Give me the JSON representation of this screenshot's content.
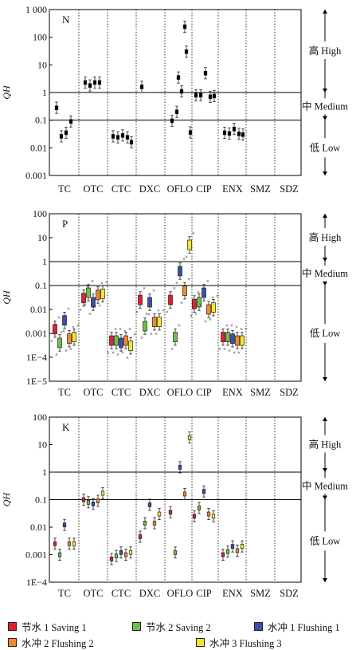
{
  "chart_data": [
    {
      "type": "box",
      "panel_label": "N",
      "ylabel": "Q_H",
      "yscale": "log",
      "ylim": [
        0.001,
        1000
      ],
      "ytick_labels": [
        "0.001",
        "0.01",
        "0.1",
        "1",
        "10",
        "100",
        "1 000"
      ],
      "categories": [
        "TC",
        "OTC",
        "CTC",
        "DXC",
        "OFLO",
        "CIP",
        "ENX",
        "SMZ",
        "SDZ"
      ],
      "thresholds": [
        0.1,
        1
      ],
      "levels": [
        "高 High",
        "中 Medium",
        "低 Low"
      ],
      "series": [
        {
          "color": "#000000",
          "values": [
            0.28,
            2.3,
            0.026,
            1.6,
            0.095,
            0.8,
            0.035,
            null,
            null
          ]
        },
        {
          "color": "#000000",
          "values": [
            0.026,
            1.8,
            0.024,
            null,
            0.2,
            0.8,
            0.033,
            null,
            null
          ]
        },
        {
          "color": "#000000",
          "values": [
            0.035,
            2.3,
            0.028,
            null,
            1.1,
            5.0,
            0.048,
            null,
            null
          ]
        },
        {
          "color": "#000000",
          "values": [
            0.09,
            2.3,
            0.024,
            null,
            30,
            0.7,
            0.032,
            null,
            null
          ]
        },
        {
          "color": "#000000",
          "values": [
            null,
            null,
            0.016,
            null,
            0.036,
            0.75,
            0.03,
            null,
            null
          ]
        },
        {
          "color": "#000000",
          "values": [
            null,
            null,
            null,
            null,
            3.5,
            null,
            null,
            null,
            null
          ]
        },
        {
          "color": "#000000",
          "values": [
            null,
            null,
            null,
            null,
            240,
            null,
            null,
            null,
            null
          ]
        }
      ]
    },
    {
      "type": "box",
      "panel_label": "P",
      "ylabel": "Q_H",
      "yscale": "log",
      "ylim": [
        1e-05,
        100
      ],
      "ytick_labels": [
        "1E−5",
        "1E−4",
        "0.001",
        "0.01",
        "0.1",
        "1",
        "10",
        "100"
      ],
      "categories": [
        "TC",
        "OTC",
        "CTC",
        "DXC",
        "OFLO",
        "CIP",
        "ENX",
        "SMZ",
        "SDZ"
      ],
      "thresholds": [
        0.1,
        1
      ],
      "levels": [
        "高 High",
        "中 Medium",
        "低 Low"
      ],
      "series": [
        {
          "name": "节水 1 Saving 1",
          "values": [
            0.0015,
            0.03,
            0.0005,
            0.025,
            0.025,
            0.017,
            0.0007,
            null,
            null
          ]
        },
        {
          "name": "节水 2 Saving 2",
          "values": [
            0.0004,
            0.05,
            0.0005,
            0.002,
            0.0007,
            0.02,
            0.0007,
            null,
            null
          ]
        },
        {
          "name": "水冲 1 Flushing 1",
          "values": [
            0.0035,
            0.02,
            0.0004,
            0.02,
            0.4,
            0.05,
            0.0006,
            null,
            null
          ]
        },
        {
          "name": "水冲 2 Flushing 2",
          "values": [
            0.0006,
            0.04,
            0.0005,
            0.003,
            0.06,
            0.01,
            0.0005,
            null,
            null
          ]
        },
        {
          "name": "水冲 3 Flushing 3",
          "values": [
            0.0007,
            0.045,
            0.0003,
            0.003,
            5,
            0.012,
            0.0005,
            null,
            null
          ]
        }
      ]
    },
    {
      "type": "box",
      "panel_label": "K",
      "ylabel": "Q_H",
      "yscale": "log",
      "ylim": [
        0.0001,
        100
      ],
      "ytick_labels": [
        "1E−4",
        "0.001",
        "0.01",
        "0.1",
        "1",
        "10",
        "100"
      ],
      "categories": [
        "TC",
        "OTC",
        "CTC",
        "DXC",
        "OFLO",
        "CIP",
        "ENX",
        "SMZ",
        "SDZ"
      ],
      "thresholds": [
        0.1,
        1
      ],
      "levels": [
        "高 High",
        "中 Medium",
        "低 Low"
      ],
      "series": [
        {
          "name": "节水 1 Saving 1",
          "values": [
            0.0025,
            0.1,
            0.0007,
            0.0045,
            0.035,
            0.025,
            0.001,
            null,
            null
          ]
        },
        {
          "name": "节水 2 Saving 2",
          "values": [
            0.001,
            0.08,
            0.0009,
            0.014,
            0.0012,
            0.05,
            0.0013,
            null,
            null
          ]
        },
        {
          "name": "水冲 1 Flushing 1",
          "values": [
            0.012,
            0.07,
            0.0012,
            0.065,
            1.5,
            0.2,
            0.002,
            null,
            null
          ]
        },
        {
          "name": "水冲 2 Flushing 2",
          "values": [
            0.0025,
            0.09,
            0.001,
            0.014,
            0.16,
            0.03,
            0.0014,
            null,
            null
          ]
        },
        {
          "name": "水冲 3 Flushing 3",
          "values": [
            0.0025,
            0.17,
            0.0012,
            0.03,
            18,
            0.025,
            0.002,
            null,
            null
          ]
        }
      ]
    }
  ],
  "legend": [
    {
      "label": "节水 1 Saving 1",
      "color": "#e02030"
    },
    {
      "label": "节水 2 Saving 2",
      "color": "#6cc04a"
    },
    {
      "label": "水冲 1 Flushing 1",
      "color": "#3a4fa8"
    },
    {
      "label": "水冲 2 Flushing 2",
      "color": "#f08a2a"
    },
    {
      "label": "水冲 3 Flushing 3",
      "color": "#f5e62a"
    }
  ]
}
